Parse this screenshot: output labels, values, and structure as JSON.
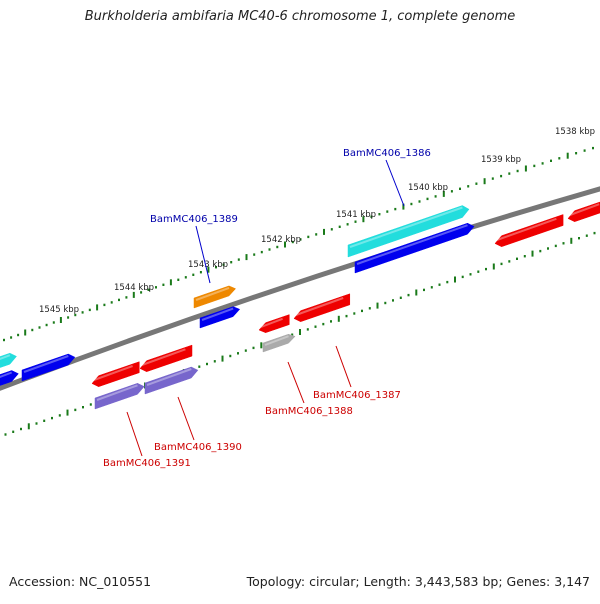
{
  "title": "Burkholderia ambifaria MC40-6 chromosome 1, complete genome",
  "footer": {
    "accession": "Accession: NC_010551",
    "summary": "Topology: circular; Length: 3,443,583 bp; Genes: 3,147"
  },
  "ticks": [
    "1538 kbp",
    "1539 kbp",
    "1540 kbp",
    "1541 kbp",
    "1542 kbp",
    "1543 kbp",
    "1544 kbp",
    "1545 kbp"
  ],
  "gene_labels": [
    {
      "text": "BamMC406_1386",
      "color": "#0000aa"
    },
    {
      "text": "BamMC406_1389",
      "color": "#0000aa"
    },
    {
      "text": "BamMC406_1387",
      "color": "#cc0000"
    },
    {
      "text": "BamMC406_1388",
      "color": "#cc0000"
    },
    {
      "text": "BamMC406_1390",
      "color": "#cc0000"
    },
    {
      "text": "BamMC406_1391",
      "color": "#cc0000"
    }
  ],
  "colors": {
    "backbone": "#777777",
    "tick": "#1a7a1a",
    "cyan": "#22dddd",
    "blue": "#0000ee",
    "red": "#ee0000",
    "orange": "#ee8800",
    "purple": "#7766cc",
    "gray": "#aaaaaa"
  }
}
